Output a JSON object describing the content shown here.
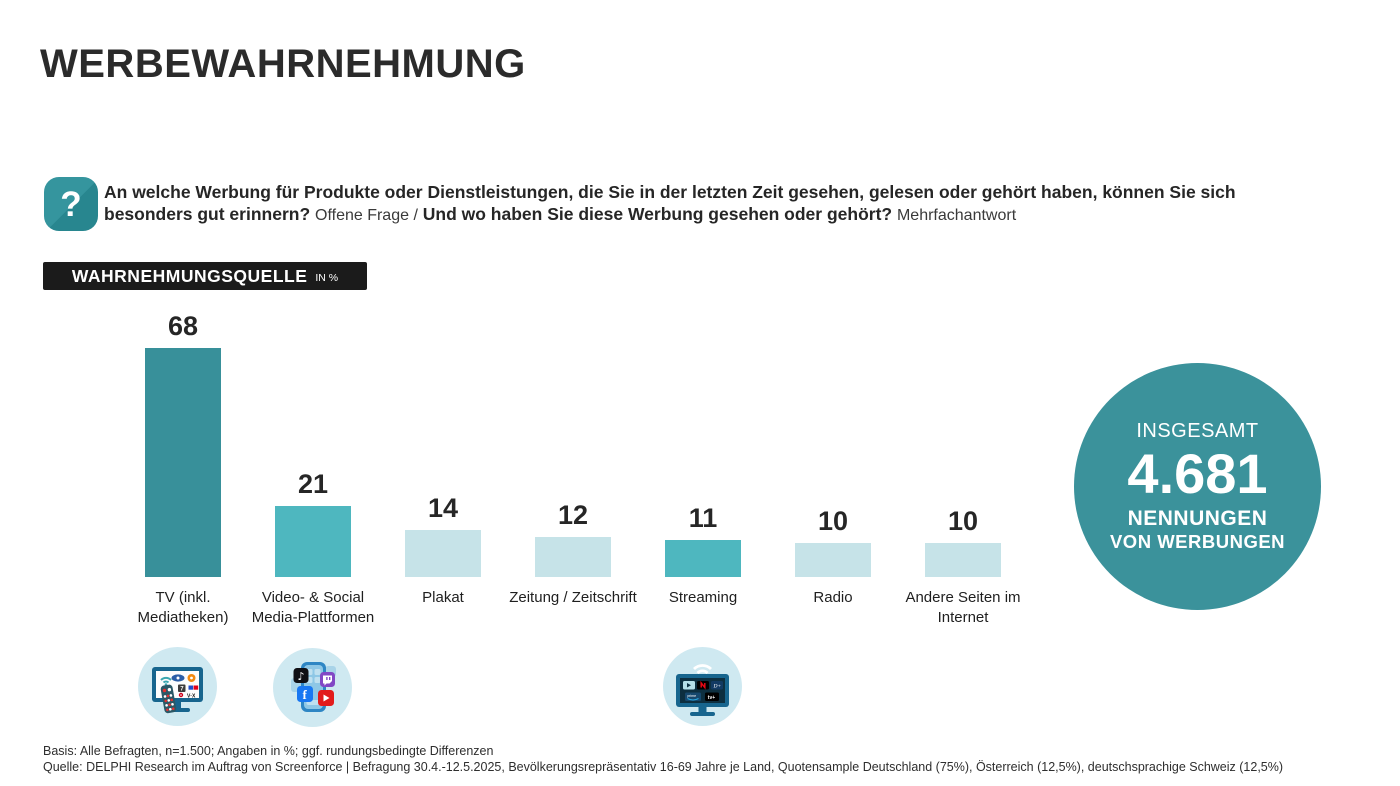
{
  "page": {
    "title": "WERBEWAHRNEHMUNG"
  },
  "question": {
    "icon": "question-mark-icon",
    "q1_bold": "An welche Werbung für Produkte oder Dienstleistungen, die Sie in der letzten Zeit gesehen, gelesen oder gehört haben, können Sie sich besonders gut erinnern?",
    "q1_note": "Offene Frage /",
    "q2_bold": "Und wo haben Sie diese Werbung gesehen oder gehört?",
    "q2_note": "Mehrfachantwort"
  },
  "section_badge": {
    "label": "WAHRNEHMUNGSQUELLE",
    "unit": "IN %"
  },
  "chart_data": {
    "type": "bar",
    "title": "WAHRNEHMUNGSQUELLE",
    "unit": "in %",
    "categories": [
      "TV (inkl. Mediatheken)",
      "Video- & Social Media-Plattformen",
      "Plakat",
      "Zeitung / Zeitschrift",
      "Streaming",
      "Radio",
      "Andere Seiten im Internet"
    ],
    "values": [
      68,
      21,
      14,
      12,
      11,
      10,
      10
    ],
    "bar_colors": [
      "#38909a",
      "#4eb7bf",
      "#c6e3e8",
      "#c6e3e8",
      "#4eb7bf",
      "#c6e3e8",
      "#c6e3e8"
    ],
    "ylim": [
      0,
      68
    ],
    "grid": false,
    "legend": false,
    "category_icons": [
      "tv-icon",
      "social-media-apps-icon",
      null,
      null,
      "streaming-tv-icon",
      null,
      null
    ],
    "total_mentions": 4681
  },
  "total_circle": {
    "label_top": "INSGESAMT",
    "value": "4.681",
    "label_sub1": "NENNUNGEN",
    "label_sub2": "VON WERBUNGEN",
    "color": "#3b929b"
  },
  "footer": {
    "basis": "Basis: Alle Befragten, n=1.500; Angaben in %; ggf. rundungsbedingte Differenzen",
    "quelle": "Quelle: DELPHI Research im Auftrag von Screenforce | Befragung 30.4.-12.5.2025, Bevölkerungsrepräsentativ 16-69 Jahre je Land, Quotensample Deutschland (75%), Österreich (12,5%), deutschsprachige Schweiz (12,5%)"
  },
  "colors": {
    "teal_dark": "#38909a",
    "teal_medium": "#4eb7bf",
    "teal_light": "#c6e3e8",
    "badge_bg": "#1b1b1b",
    "icon_circle_bg": "#cfe9f1",
    "text": "#2b2b2b"
  }
}
